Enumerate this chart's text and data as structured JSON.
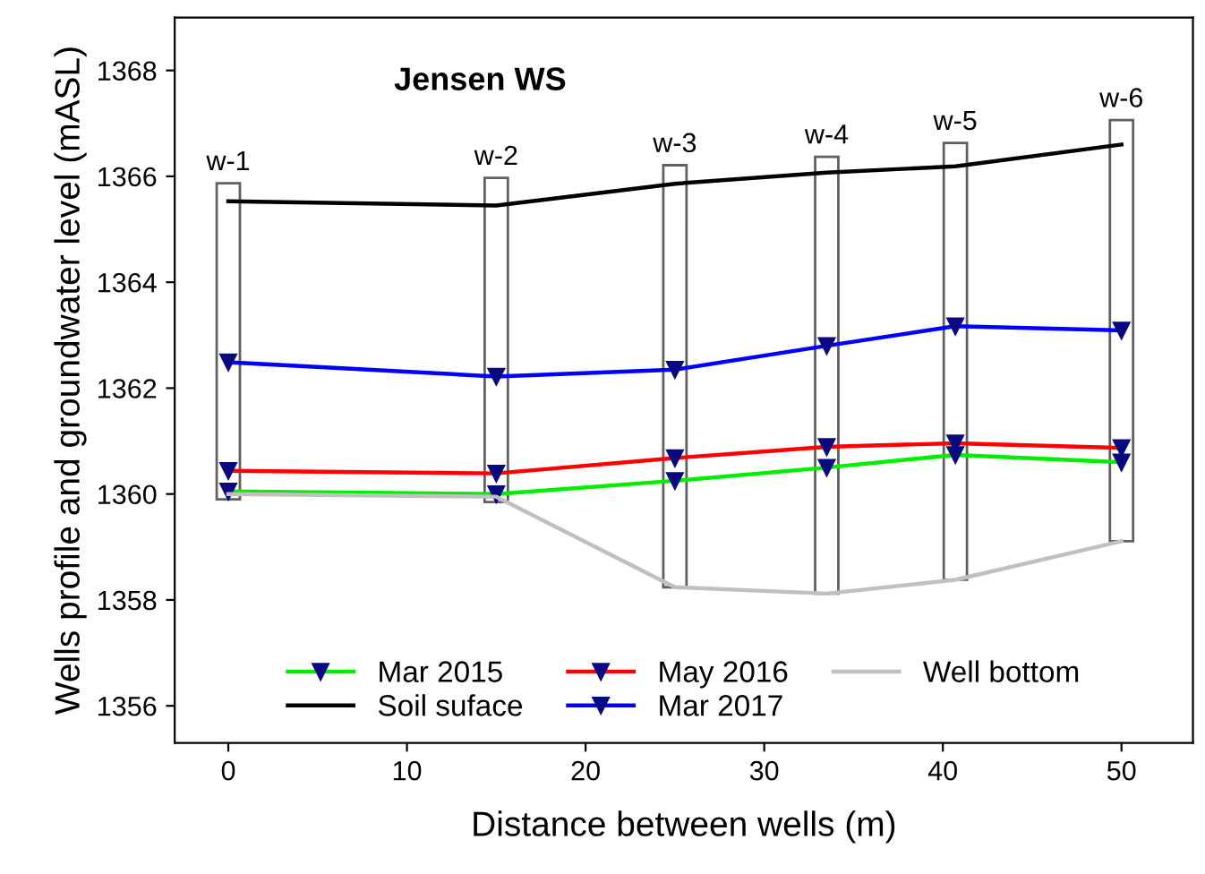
{
  "chart_data": {
    "type": "line",
    "title": "Jensen WS",
    "xlabel": "Distance between wells (m)",
    "ylabel": "Wells profile and groundwater level (mASL)",
    "xlim": [
      -3,
      54
    ],
    "ylim": [
      1355.3,
      1369
    ],
    "xticks": [
      0,
      10,
      20,
      30,
      40,
      50
    ],
    "yticks": [
      1356,
      1358,
      1360,
      1362,
      1364,
      1366,
      1368
    ],
    "grid": false,
    "legend": "bottom",
    "series": [
      {
        "type": "bar",
        "color": "#ffffff",
        "x": [
          0,
          15,
          25,
          33.5,
          40.7,
          50
        ],
        "base": [
          1359.9,
          1359.85,
          1358.24,
          1358.12,
          1358.38,
          1359.11
        ],
        "values": [
          5.97,
          6.12,
          7.97,
          8.25,
          8.25,
          7.95
        ]
      },
      {
        "name": "Mar 2015",
        "color": "#00ee00",
        "marker": "triangle",
        "x": [
          0,
          15,
          25,
          33.5,
          40.7,
          50
        ],
        "values": [
          1360.05,
          1360.0,
          1360.25,
          1360.5,
          1360.74,
          1360.6
        ]
      },
      {
        "name": "Soil suface",
        "color": "#000000",
        "marker": "none",
        "x": [
          0,
          15,
          25,
          33.5,
          40.7,
          50
        ],
        "values": [
          1365.53,
          1365.45,
          1365.86,
          1366.07,
          1366.19,
          1366.6
        ]
      },
      {
        "name": "May 2016",
        "color": "#ff0000",
        "marker": "triangle",
        "x": [
          0,
          15,
          25,
          33.5,
          40.7,
          50
        ],
        "values": [
          1360.44,
          1360.39,
          1360.68,
          1360.89,
          1360.96,
          1360.87
        ]
      },
      {
        "name": "Mar 2017",
        "color": "#0000ff",
        "marker": "triangle",
        "x": [
          0,
          15,
          25,
          33.5,
          40.7,
          50
        ],
        "values": [
          1362.49,
          1362.22,
          1362.35,
          1362.8,
          1363.17,
          1363.09
        ]
      },
      {
        "name": "Well bottom",
        "color": "#c0c0c0",
        "marker": "none",
        "x": [
          0,
          15,
          25,
          33.5,
          40.7,
          50
        ],
        "values": [
          1360.0,
          1359.95,
          1358.24,
          1358.12,
          1358.38,
          1359.11
        ]
      }
    ],
    "annotations": [
      {
        "text": "w-1",
        "x": 0,
        "y": 1365.87
      },
      {
        "text": "w-2",
        "x": 15,
        "y": 1365.97
      },
      {
        "text": "w-3",
        "x": 25,
        "y": 1366.21
      },
      {
        "text": "w-4",
        "x": 33.5,
        "y": 1366.37
      },
      {
        "text": "w-5",
        "x": 40.7,
        "y": 1366.63
      },
      {
        "text": "w-6",
        "x": 50,
        "y": 1367.06
      }
    ]
  }
}
